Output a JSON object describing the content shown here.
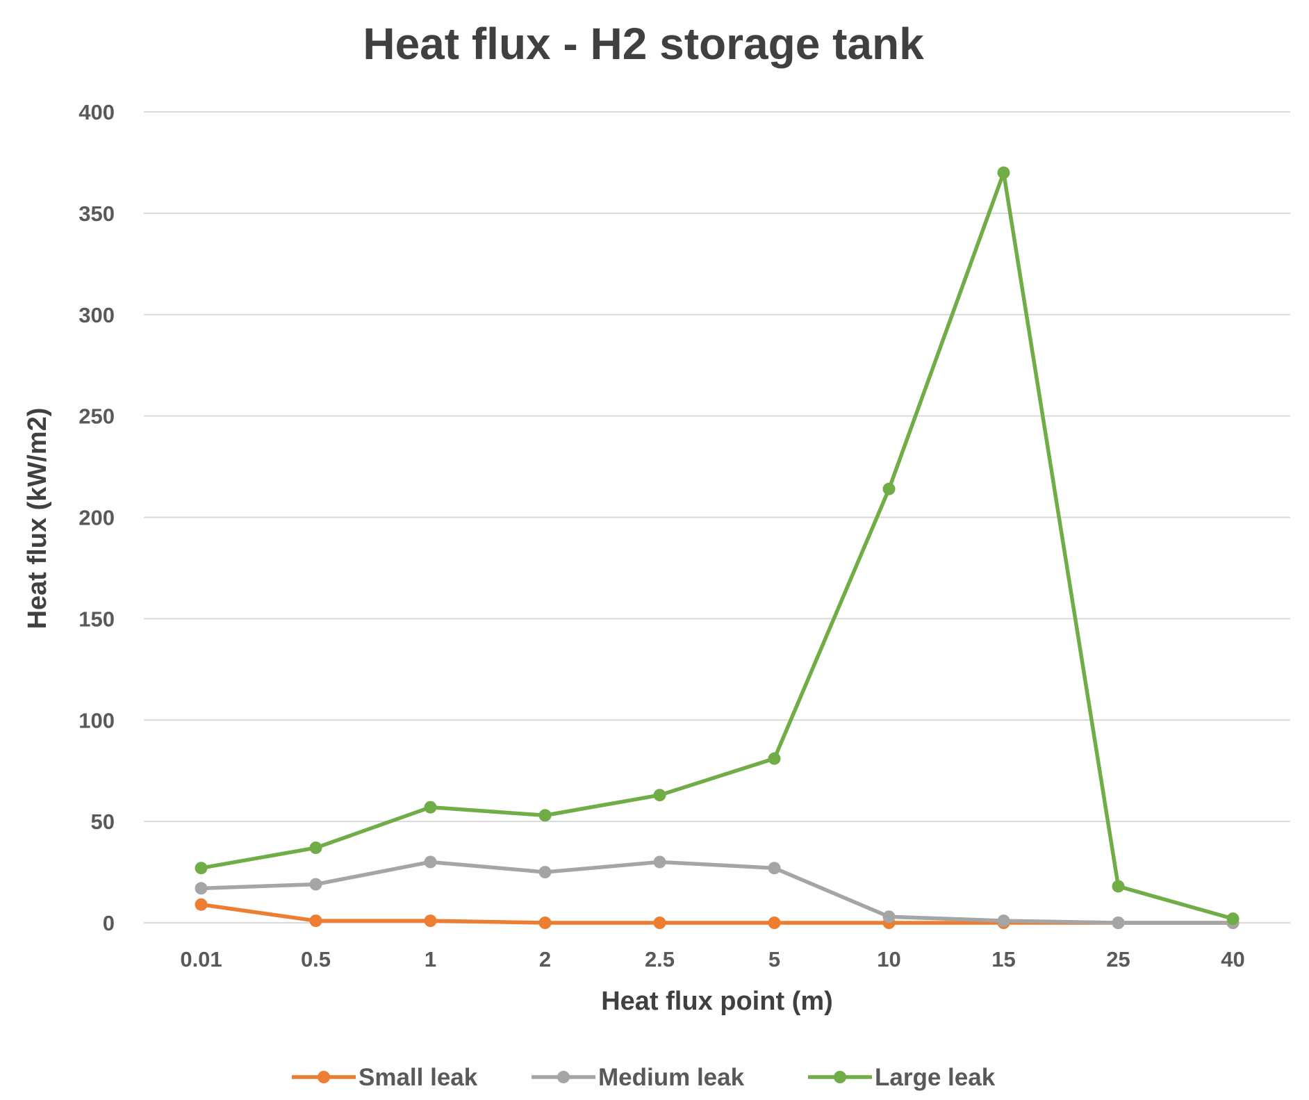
{
  "chart_data": {
    "type": "line",
    "title": "Heat flux - H2 storage tank",
    "xlabel": "Heat flux point (m)",
    "ylabel": "Heat flux (kW/m2)",
    "categories": [
      "0.01",
      "0.5",
      "1",
      "2",
      "2.5",
      "5",
      "10",
      "15",
      "25",
      "40"
    ],
    "ylim": [
      0,
      400
    ],
    "yticks": [
      "0",
      "50",
      "100",
      "150",
      "200",
      "250",
      "300",
      "350",
      "400"
    ],
    "grid": true,
    "legend_position": "bottom",
    "series": [
      {
        "name": "Small leak",
        "color": "#ed7d31",
        "values": [
          9,
          1,
          1,
          0,
          0,
          0,
          0,
          0,
          0,
          0
        ]
      },
      {
        "name": "Medium leak",
        "color": "#a5a5a5",
        "values": [
          17,
          19,
          30,
          25,
          30,
          27,
          3,
          1,
          0,
          0
        ]
      },
      {
        "name": "Large leak",
        "color": "#70ad47",
        "values": [
          27,
          37,
          57,
          53,
          63,
          81,
          214,
          370,
          18,
          2
        ]
      }
    ]
  }
}
